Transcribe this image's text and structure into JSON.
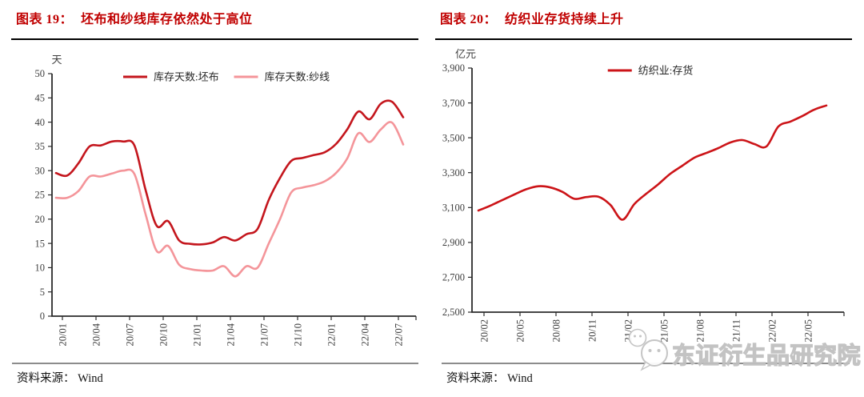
{
  "colors": {
    "title_red": "#C00000",
    "series_dark_red": "#C4161D",
    "series_light_red": "#F4959A",
    "axis": "#2b2b2b",
    "tick_text": "#3f3f3f",
    "watermark_gray": "#c2c2c2"
  },
  "watermark": {
    "logo_icon": "chat-bubble-panda-logo",
    "text": "东证衍生品研究院"
  },
  "chart_data": [
    {
      "type": "line",
      "figure_label": "图表 19：",
      "title": "坯布和纱线库存依然处于高位",
      "unit": "天",
      "source": "资料来源： Wind",
      "legend_position": "top",
      "grid": false,
      "ylim": [
        0,
        50
      ],
      "y_ticks": [
        0,
        5,
        10,
        15,
        20,
        25,
        30,
        35,
        40,
        45,
        50
      ],
      "y_tick_labels": [
        "0",
        "5",
        "10",
        "15",
        "20",
        "25",
        "30",
        "35",
        "40",
        "45",
        "50"
      ],
      "x": [
        "20/01",
        "20/02",
        "20/03",
        "20/04",
        "20/05",
        "20/06",
        "20/07",
        "20/08",
        "20/09",
        "20/10",
        "20/11",
        "20/12",
        "21/01",
        "21/02",
        "21/03",
        "21/04",
        "21/05",
        "21/06",
        "21/07",
        "21/08",
        "21/09",
        "21/10",
        "21/11",
        "21/12",
        "22/01",
        "22/02",
        "22/03",
        "22/04",
        "22/05",
        "22/06",
        "22/07",
        "22/08"
      ],
      "x_tick_labels": [
        "20/01",
        "20/04",
        "20/07",
        "20/10",
        "21/01",
        "21/04",
        "21/07",
        "21/10",
        "22/01",
        "22/04",
        "22/07"
      ],
      "series": [
        {
          "name": "库存天数:坯布",
          "color": "#C4161D",
          "values": [
            29.5,
            29.0,
            31.5,
            35.0,
            35.2,
            36.0,
            36.0,
            35.2,
            26.0,
            18.6,
            19.6,
            15.6,
            14.9,
            14.8,
            15.2,
            16.3,
            15.6,
            16.9,
            18.0,
            24.0,
            28.5,
            32.0,
            32.6,
            33.2,
            33.8,
            35.5,
            38.5,
            42.2,
            40.6,
            43.8,
            44.2,
            41.0
          ]
        },
        {
          "name": "库存天数:纱线",
          "color": "#F4959A",
          "values": [
            24.4,
            24.4,
            25.8,
            28.8,
            28.8,
            29.4,
            30.0,
            29.3,
            21.0,
            13.4,
            14.5,
            10.6,
            9.7,
            9.4,
            9.4,
            10.3,
            8.2,
            10.3,
            10.0,
            15.0,
            20.0,
            25.5,
            26.5,
            27.0,
            27.8,
            29.5,
            32.5,
            37.7,
            35.9,
            38.5,
            39.9,
            35.4
          ]
        }
      ]
    },
    {
      "type": "line",
      "figure_label": "图表 20：",
      "title": "纺织业存货持续上升",
      "unit": "亿元",
      "source": "资料来源： Wind",
      "legend_position": "top",
      "grid": false,
      "ylim": [
        2500,
        3900
      ],
      "y_ticks": [
        2500,
        2700,
        2900,
        3100,
        3300,
        3500,
        3700,
        3900
      ],
      "y_tick_labels": [
        "2,500",
        "2,700",
        "2,900",
        "3,100",
        "3,300",
        "3,500",
        "3,700",
        "3,900"
      ],
      "x": [
        "20/02",
        "20/03",
        "20/04",
        "20/05",
        "20/06",
        "20/07",
        "20/08",
        "20/09",
        "20/10",
        "20/11",
        "20/12",
        "21/01",
        "21/02",
        "21/03",
        "21/04",
        "21/05",
        "21/06",
        "21/07",
        "21/08",
        "21/09",
        "21/10",
        "21/11",
        "21/12",
        "22/01",
        "22/02",
        "22/03",
        "22/04",
        "22/05",
        "22/06",
        "22/07"
      ],
      "x_tick_labels": [
        "20/02",
        "20/05",
        "20/08",
        "20/11",
        "21/02",
        "21/05",
        "21/08",
        "21/11",
        "22/02",
        "22/05"
      ],
      "series": [
        {
          "name": "纺织业:存货",
          "color": "#CC1418",
          "values": [
            3083,
            3111,
            3143,
            3175,
            3205,
            3222,
            3215,
            3190,
            3150,
            3160,
            3162,
            3115,
            3030,
            3120,
            3180,
            3234,
            3294,
            3340,
            3386,
            3413,
            3441,
            3473,
            3487,
            3464,
            3450,
            3565,
            3593,
            3625,
            3662,
            3685
          ]
        }
      ]
    }
  ]
}
